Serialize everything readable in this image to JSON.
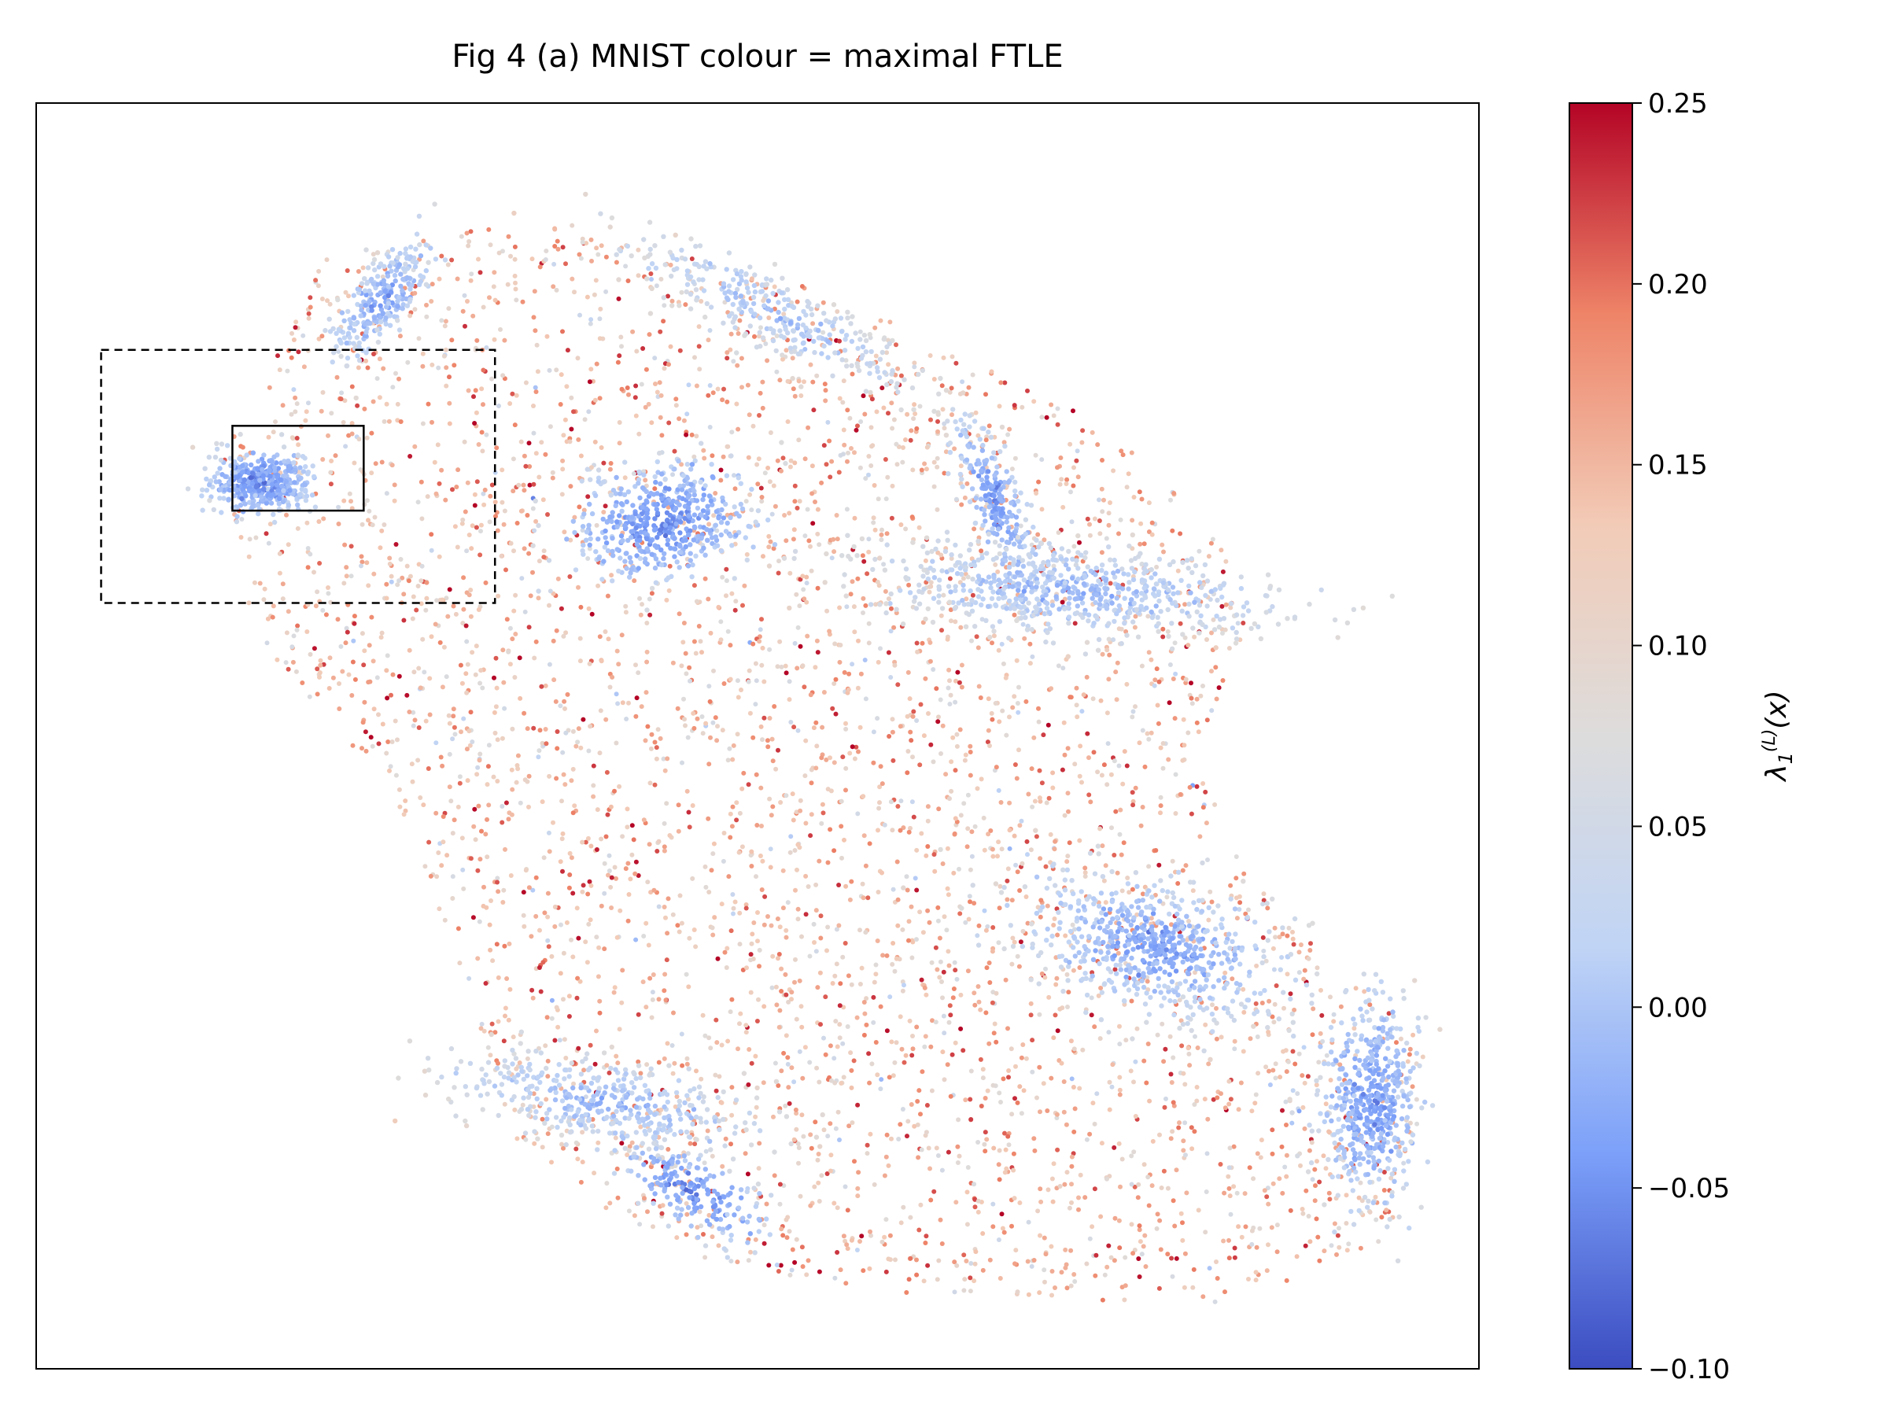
{
  "chart_data": {
    "type": "scatter",
    "title": "Fig 4 (a)  MNIST   colour = maximal FTLE",
    "xlabel": "",
    "ylabel": "",
    "x_ticks_shown": false,
    "y_ticks_shown": false,
    "grid": false,
    "colormap": "coolwarm",
    "colorbar": {
      "label": "λ₁⁽ᴸ⁾(x)",
      "label_base": "λ",
      "label_sub": "1",
      "label_sup": "(L)",
      "label_arg": "(x)",
      "range": [
        -0.1,
        0.25
      ],
      "ticks": [
        -0.1,
        -0.05,
        0.0,
        0.05,
        0.1,
        0.15,
        0.2,
        0.25
      ],
      "tick_labels": [
        "−0.10",
        "−0.05",
        "0.00",
        "0.05",
        "0.10",
        "0.15",
        "0.20",
        "0.25"
      ],
      "colors": [
        "#3b4cc0",
        "#7b9ff9",
        "#c0d4f5",
        "#dddcdc",
        "#f2cbb7",
        "#ee8468",
        "#b40426"
      ]
    },
    "xlim": [
      0,
      100
    ],
    "ylim": [
      0,
      100
    ],
    "clusters": [
      {
        "center": [
          15.5,
          70.0
        ],
        "spread": [
          1.8,
          1.2
        ],
        "angle": 0,
        "count": 420,
        "ftle": -0.06
      },
      {
        "center": [
          24.0,
          84.5
        ],
        "spread": [
          1.1,
          2.6
        ],
        "angle": -35,
        "count": 260,
        "ftle": -0.04
      },
      {
        "center": [
          43.5,
          67.0
        ],
        "spread": [
          3.0,
          2.0
        ],
        "angle": 15,
        "count": 500,
        "ftle": -0.06
      },
      {
        "center": [
          51.0,
          83.5
        ],
        "spread": [
          6.0,
          1.4
        ],
        "angle": -30,
        "count": 320,
        "ftle": -0.01
      },
      {
        "center": [
          66.5,
          68.5
        ],
        "spread": [
          0.9,
          3.4
        ],
        "angle": 20,
        "count": 240,
        "ftle": -0.05
      },
      {
        "center": [
          72.0,
          61.5
        ],
        "spread": [
          7.0,
          1.7
        ],
        "angle": -5,
        "count": 650,
        "ftle": -0.02
      },
      {
        "center": [
          77.5,
          33.5
        ],
        "spread": [
          4.5,
          2.4
        ],
        "angle": -20,
        "count": 650,
        "ftle": -0.04
      },
      {
        "center": [
          92.5,
          21.0
        ],
        "spread": [
          1.6,
          4.0
        ],
        "angle": 0,
        "count": 520,
        "ftle": -0.05
      },
      {
        "center": [
          39.5,
          21.0
        ],
        "spread": [
          5.5,
          1.6
        ],
        "angle": -12,
        "count": 420,
        "ftle": -0.02
      },
      {
        "center": [
          45.5,
          14.0
        ],
        "spread": [
          3.0,
          1.2
        ],
        "angle": -35,
        "count": 200,
        "ftle": -0.06
      }
    ],
    "background": {
      "count": 4200,
      "ftle_mean": 0.14,
      "ftle_sd": 0.05
    },
    "annotations": [
      {
        "type": "rect",
        "style": "dashed",
        "x": [
          4.5,
          31.8
        ],
        "y": [
          60.5,
          80.5
        ]
      },
      {
        "type": "rect",
        "style": "solid",
        "x": [
          13.6,
          22.7
        ],
        "y": [
          67.8,
          74.5
        ]
      }
    ]
  }
}
